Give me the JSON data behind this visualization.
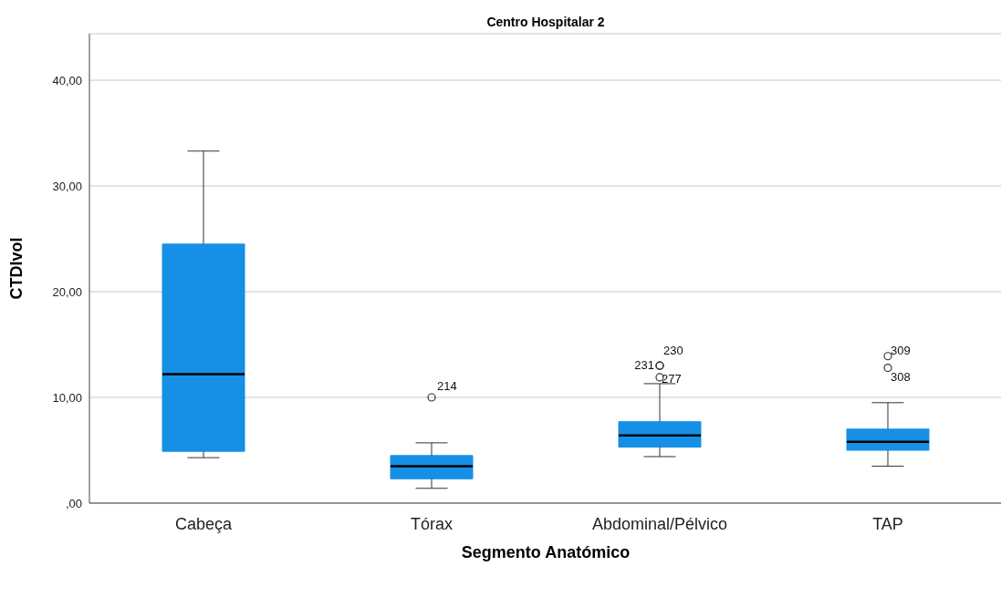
{
  "chart_data": {
    "type": "box",
    "title": "Centro Hospitalar 2",
    "xlabel": "Segmento Anatómico",
    "ylabel": "CTDIvol",
    "categories": [
      "Cabeça",
      "Tórax",
      "Abdominal/Pélvico",
      "TAP"
    ],
    "color": "#1690e6",
    "boxes": [
      {
        "low": 4.3,
        "q1": 4.9,
        "median": 12.2,
        "q3": 24.5,
        "high": 33.3
      },
      {
        "low": 1.4,
        "q1": 2.3,
        "median": 3.5,
        "q3": 4.5,
        "high": 5.7,
        "outliers": [
          10.0
        ]
      },
      {
        "low": 4.4,
        "q1": 5.3,
        "median": 6.4,
        "q3": 7.7,
        "high": 11.3,
        "outliers": [
          13.0,
          13.0,
          11.9
        ]
      },
      {
        "low": 3.5,
        "q1": 5.0,
        "median": 5.8,
        "q3": 7.0,
        "high": 9.5,
        "outliers": [
          13.9,
          12.8
        ]
      }
    ],
    "ylim": [
      0,
      44.4
    ],
    "yticks": [
      {
        "value": 0,
        "label": ",00"
      },
      {
        "value": 10,
        "label": "10,00"
      },
      {
        "value": 20,
        "label": "20,00"
      },
      {
        "value": 30,
        "label": "30,00"
      },
      {
        "value": 40,
        "label": "40,00"
      }
    ],
    "grid": "y",
    "annotations": [
      "214",
      "231",
      "230",
      "277",
      "309",
      "308"
    ]
  }
}
